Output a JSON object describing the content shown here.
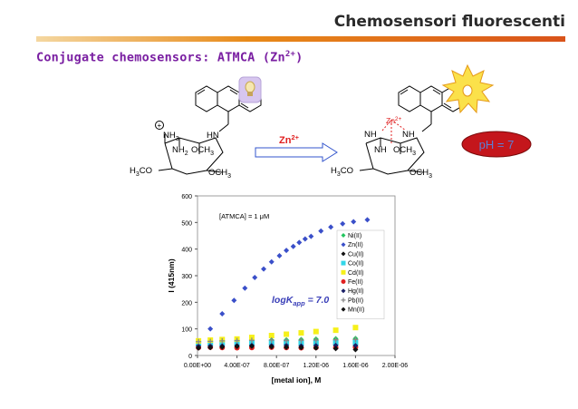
{
  "header": {
    "title": "Chemosensori fluorescenti"
  },
  "slide": {
    "title_main": "Conjugate chemosensors: ATMCA (Zn",
    "title_sup": "2+",
    "title_end": ")"
  },
  "scheme": {
    "left_labels": {
      "nh3": "NH",
      "nh3_sub": "3",
      "hn": "HN",
      "nh2": "NH",
      "nh2_sub": "2",
      "och3_mid": "OCH",
      "och3_mid_sub": "3",
      "h3co": "H",
      "h3co_sub": "3",
      "h3co_end": "CO",
      "och3_right": "OCH",
      "och3_right_sub": "3",
      "plus": "+"
    },
    "arrow_label": "Zn",
    "arrow_label_sup": "2+",
    "right_labels": {
      "zn": "Zn",
      "zn_sup": "2+",
      "nh_left": "NH",
      "nh_right": "NH",
      "nh_mid": "NH",
      "och3_mid": "OCH",
      "och3_mid_sub": "3",
      "h3co": "H",
      "h3co_sub": "3",
      "h3co_end": "CO",
      "och3_right": "OCH",
      "och3_right_sub": "3"
    },
    "ph_label": "pH = 7"
  },
  "colors": {
    "accent_purple": "#7a1fa2",
    "ph_red": "#c4161c",
    "zn_red": "#e02020",
    "arrow_blue": "#3355cc"
  },
  "chart_data": {
    "type": "scatter",
    "xlabel": "[metal ion], M",
    "ylabel": "I (415nm)",
    "xlim": [
      0,
      2e-06
    ],
    "ylim": [
      0,
      600
    ],
    "x_ticks": [
      "0.00E+00",
      "4.00E-07",
      "8.00E-07",
      "1.20E-06",
      "1.60E-06",
      "2.00E-06"
    ],
    "y_ticks": [
      "0",
      "100",
      "200",
      "300",
      "400",
      "500",
      "600"
    ],
    "annotation_conc": "[ATMCA] = 1 μM",
    "annotation_k_main": "logK",
    "annotation_k_sub": "app",
    "annotation_k_end": " = 7.0",
    "legend_position": "right",
    "series": [
      {
        "name": "Ni(II)",
        "color": "#22c55e",
        "marker": "diamond",
        "x": [
          1e-08,
          1.3e-07,
          2.5e-07,
          4e-07,
          5.5e-07,
          7.5e-07,
          9e-07,
          1.05e-06,
          1.2e-06,
          1.4e-06,
          1.6e-06
        ],
        "y": [
          50,
          52,
          54,
          55,
          56,
          58,
          59,
          60,
          62,
          63,
          64
        ]
      },
      {
        "name": "Zn(II)",
        "color": "#3a4fc9",
        "marker": "diamond",
        "x": [
          1e-08,
          1.3e-07,
          2.5e-07,
          3.7e-07,
          4.8e-07,
          5.8e-07,
          6.7e-07,
          7.5e-07,
          8.3e-07,
          9e-07,
          9.7e-07,
          1.03e-06,
          1.09e-06,
          1.15e-06,
          1.25e-06,
          1.35e-06,
          1.47e-06,
          1.58e-06,
          1.72e-06
        ],
        "y": [
          50,
          100,
          157,
          207,
          253,
          293,
          325,
          352,
          375,
          395,
          410,
          425,
          438,
          448,
          468,
          483,
          495,
          503,
          510
        ]
      },
      {
        "name": "Cu(II)",
        "color": "#111111",
        "marker": "diamond",
        "x": [
          1e-08,
          1.3e-07,
          2.5e-07,
          4e-07,
          5.5e-07,
          7.5e-07,
          9e-07,
          1.05e-06,
          1.2e-06,
          1.4e-06,
          1.6e-06
        ],
        "y": [
          40,
          41,
          42,
          41,
          40,
          42,
          41,
          40,
          42,
          41,
          40
        ]
      },
      {
        "name": "Co(II)",
        "color": "#33d6e8",
        "marker": "square",
        "x": [
          1e-08,
          1.3e-07,
          2.5e-07,
          4e-07,
          5.5e-07,
          7.5e-07,
          9e-07,
          1.05e-06,
          1.2e-06,
          1.4e-06,
          1.6e-06
        ],
        "y": [
          45,
          46,
          47,
          48,
          47,
          48,
          49,
          48,
          47,
          48,
          49
        ]
      },
      {
        "name": "Cd(II)",
        "color": "#f6f01a",
        "marker": "square",
        "x": [
          1e-08,
          1.3e-07,
          2.5e-07,
          4e-07,
          5.5e-07,
          7.5e-07,
          9e-07,
          1.05e-06,
          1.2e-06,
          1.4e-06,
          1.6e-06
        ],
        "y": [
          55,
          58,
          60,
          62,
          68,
          75,
          80,
          85,
          90,
          95,
          105
        ]
      },
      {
        "name": "Fe(II)",
        "color": "#e02020",
        "marker": "circle",
        "x": [
          1e-08,
          1.3e-07,
          2.5e-07,
          4e-07,
          5.5e-07,
          7.5e-07,
          9e-07,
          1.05e-06,
          1.2e-06,
          1.4e-06,
          1.6e-06
        ],
        "y": [
          30,
          31,
          30,
          29,
          30,
          31,
          30,
          29,
          30,
          30,
          31
        ]
      },
      {
        "name": "Hg(II)",
        "color": "#1a1f66",
        "marker": "diamond",
        "x": [
          1e-08,
          1.3e-07,
          2.5e-07,
          4e-07,
          5.5e-07,
          7.5e-07,
          9e-07,
          1.05e-06,
          1.2e-06,
          1.4e-06,
          1.6e-06
        ],
        "y": [
          35,
          36,
          36,
          37,
          38,
          37,
          38,
          36,
          37,
          38,
          37
        ]
      },
      {
        "name": "Pb(II)",
        "color": "#888888",
        "marker": "plus",
        "x": [
          1e-08,
          1.3e-07,
          2.5e-07,
          4e-07,
          5.5e-07,
          7.5e-07,
          9e-07,
          1.05e-06,
          1.2e-06,
          1.4e-06,
          1.6e-06
        ],
        "y": [
          52,
          53,
          55,
          56,
          57,
          58,
          56,
          57,
          58,
          59,
          60
        ]
      },
      {
        "name": "Mn(II)",
        "color": "#111111",
        "marker": "diamond",
        "x": [
          1e-08,
          1.3e-07,
          2.5e-07,
          4e-07,
          5.5e-07,
          7.5e-07,
          9e-07,
          1.05e-06,
          1.2e-06,
          1.4e-06,
          1.6e-06
        ],
        "y": [
          28,
          30,
          32,
          34,
          35,
          33,
          31,
          30,
          28,
          26,
          22
        ]
      }
    ]
  }
}
